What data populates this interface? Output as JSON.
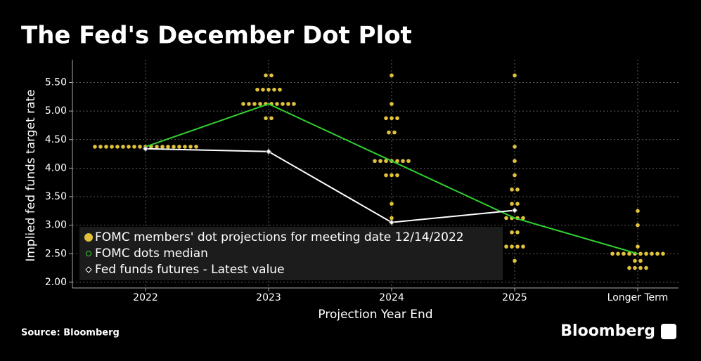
{
  "chart_data": {
    "type": "dot-plot",
    "title": "The Fed's December Dot Plot",
    "x_label": "Projection Year End",
    "y_label": "Implied fed funds target rate",
    "categories": [
      "2022",
      "2023",
      "2024",
      "2025",
      "Longer Term"
    ],
    "ylim": [
      1.9,
      5.9
    ],
    "yticks": [
      {
        "value": 2,
        "label": "2.00"
      },
      {
        "value": 2.5,
        "label": "2.50"
      },
      {
        "value": 3,
        "label": "3.00"
      },
      {
        "value": 3.5,
        "label": "3.50"
      },
      {
        "value": 4,
        "label": "4.00"
      },
      {
        "value": 4.5,
        "label": "4.50"
      },
      {
        "value": 5,
        "label": "5.00"
      },
      {
        "value": 5.5,
        "label": "5.50"
      }
    ],
    "grid": true,
    "series": [
      {
        "name": "FOMC members' dot projections for meeting date 12/14/2022",
        "color": "#e2c23a",
        "kind": "dots",
        "values": [
          [
            4.375,
            4.375,
            4.375,
            4.375,
            4.375,
            4.375,
            4.375,
            4.375,
            4.375,
            4.375,
            4.375,
            4.375,
            4.375,
            4.375,
            4.375,
            4.375,
            4.375,
            4.375,
            4.375
          ],
          [
            5.625,
            5.625,
            5.375,
            5.375,
            5.375,
            5.375,
            5.375,
            5.125,
            5.125,
            5.125,
            5.125,
            5.125,
            5.125,
            5.125,
            5.125,
            5.125,
            5.125,
            4.875,
            4.875
          ],
          [
            5.625,
            5.125,
            4.875,
            4.875,
            4.875,
            4.625,
            4.625,
            4.125,
            4.125,
            4.125,
            4.125,
            4.125,
            4.125,
            4.125,
            3.875,
            3.875,
            3.875,
            3.375,
            3.125
          ],
          [
            5.625,
            4.375,
            4.125,
            3.875,
            3.625,
            3.625,
            3.375,
            3.375,
            3.125,
            3.125,
            3.125,
            3.125,
            2.875,
            2.875,
            2.625,
            2.625,
            2.625,
            2.625,
            2.375
          ],
          [
            3.25,
            3,
            2.625,
            2.5,
            2.5,
            2.5,
            2.5,
            2.5,
            2.5,
            2.5,
            2.5,
            2.5,
            2.5,
            2.375,
            2.375,
            2.25,
            2.25,
            2.25,
            2.25
          ]
        ]
      },
      {
        "name": "FOMC dots median",
        "color": "#2fd12f",
        "kind": "line",
        "values": [
          4.375,
          5.125,
          4.125,
          3.125,
          2.5
        ]
      },
      {
        "name": "Fed funds futures - Latest value",
        "color": "#ffffff",
        "kind": "line",
        "values": [
          4.34,
          4.29,
          3.05,
          3.26,
          null
        ]
      }
    ],
    "source": "Source: Bloomberg",
    "brand": "Bloomberg"
  }
}
